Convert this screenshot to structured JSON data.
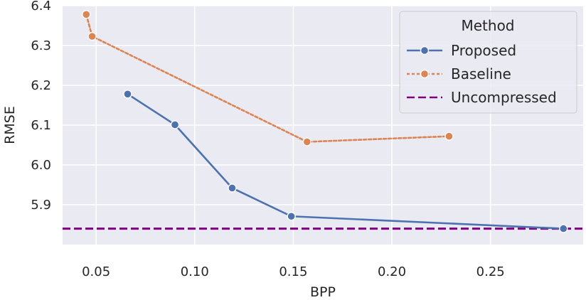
{
  "chart_data": {
    "type": "line",
    "title": "",
    "xlabel": "BPP",
    "ylabel": "RMSE",
    "xlim": [
      0.033,
      0.297
    ],
    "ylim": [
      5.8,
      6.4
    ],
    "xticks": [
      0.05,
      0.1,
      0.15,
      0.2,
      0.25
    ],
    "xtick_labels": [
      "0.05",
      "0.10",
      "0.15",
      "0.20",
      "0.25"
    ],
    "yticks": [
      5.9,
      6.0,
      6.1,
      6.2,
      6.3,
      6.4
    ],
    "ytick_labels": [
      "5.9",
      "6.0",
      "6.1",
      "6.2",
      "6.3",
      "6.4"
    ],
    "grid": true,
    "legend": {
      "title": "Method",
      "placement": "top-right"
    },
    "series": [
      {
        "name": "Proposed",
        "color": "#4c72b0",
        "linestyle": "solid",
        "marker": "circle",
        "x": [
          0.066,
          0.09,
          0.119,
          0.149,
          0.287
        ],
        "y": [
          6.178,
          6.101,
          5.942,
          5.871,
          5.84
        ]
      },
      {
        "name": "Baseline",
        "color": "#dd8452",
        "linestyle": "dotted",
        "marker": "circle",
        "x": [
          0.045,
          0.048,
          0.157,
          0.229
        ],
        "y": [
          6.378,
          6.323,
          6.058,
          6.072
        ]
      },
      {
        "name": "Uncompressed",
        "color": "#800080",
        "linestyle": "dashed",
        "marker": "none",
        "y_constant": 5.84
      }
    ]
  }
}
